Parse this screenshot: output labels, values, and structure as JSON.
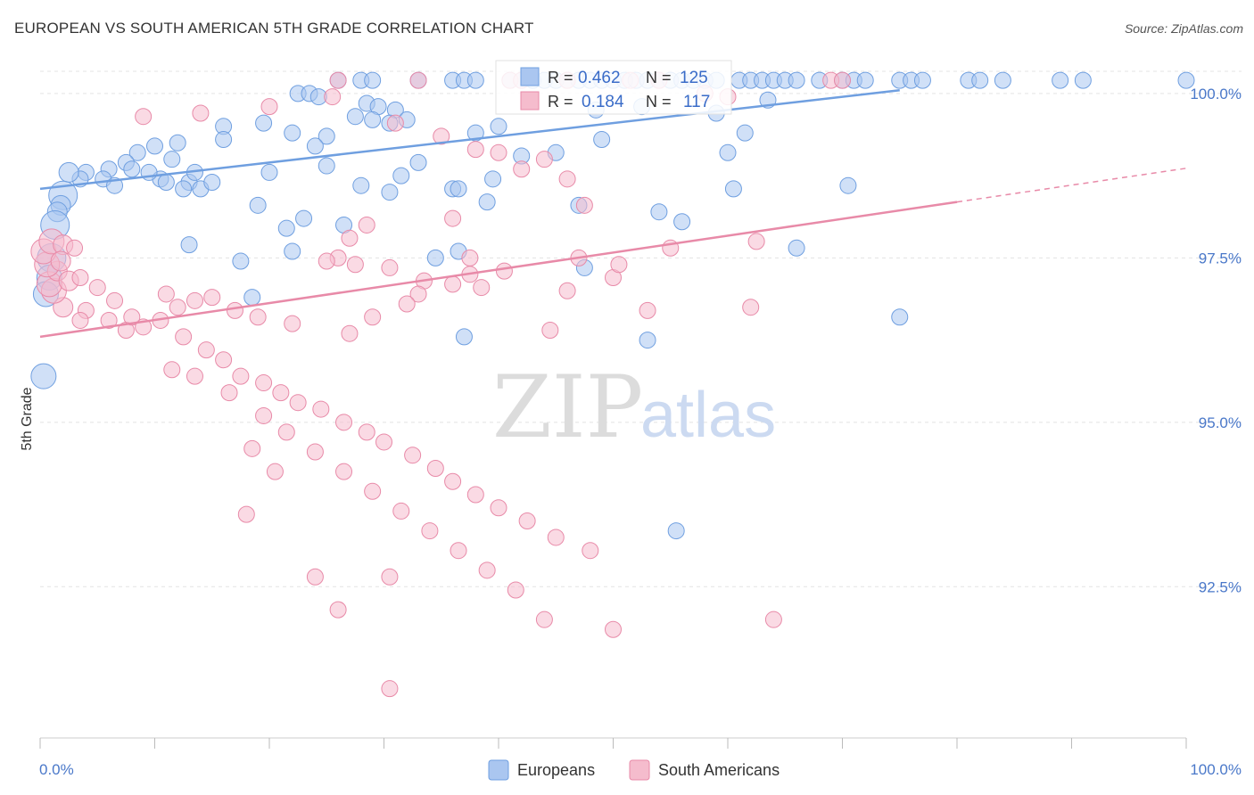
{
  "header": {
    "title": "EUROPEAN VS SOUTH AMERICAN 5TH GRADE CORRELATION CHART",
    "source": "Source: ZipAtlas.com"
  },
  "watermark": {
    "zip": "ZIP",
    "atlas": "atlas"
  },
  "chart_data": {
    "type": "scatter",
    "ylabel": "5th Grade",
    "xlim": [
      0,
      100
    ],
    "ylim": [
      90.2,
      100.5
    ],
    "x_tick_labels": {
      "left": "0.0%",
      "right": "100.0%"
    },
    "y_ticks": [
      {
        "value": 100.0,
        "label": "100.0%"
      },
      {
        "value": 97.5,
        "label": "97.5%"
      },
      {
        "value": 95.0,
        "label": "95.0%"
      },
      {
        "value": 92.5,
        "label": "92.5%"
      }
    ],
    "grid": true,
    "legend_stats": [
      {
        "r_label": "R =",
        "r_value": "0.462",
        "n_label": "N =",
        "n_value": "125"
      },
      {
        "r_label": "R =",
        "r_value": "0.184",
        "n_label": "N =",
        "n_value": "117"
      }
    ],
    "series": [
      {
        "name": "Europeans",
        "color": "#6f9fe0",
        "fill": "#aac6f0",
        "trend": {
          "x0": 0,
          "y0": 98.55,
          "x1": 75,
          "y1": 100.05,
          "dash_to": 75
        },
        "points": [
          [
            26,
            100.2
          ],
          [
            28,
            100.2
          ],
          [
            29,
            100.2
          ],
          [
            33,
            100.2
          ],
          [
            36,
            100.2
          ],
          [
            37,
            100.2
          ],
          [
            38,
            100.2
          ],
          [
            41,
            100.2
          ],
          [
            42,
            100.2
          ],
          [
            43,
            100.2
          ],
          [
            44,
            100.2
          ],
          [
            45,
            100.2
          ],
          [
            46,
            100.2
          ],
          [
            47,
            100.2
          ],
          [
            48,
            100.2
          ],
          [
            49,
            100.2
          ],
          [
            50,
            100.2
          ],
          [
            51,
            100.2
          ],
          [
            52,
            100.2
          ],
          [
            53,
            100.2
          ],
          [
            54,
            100.2
          ],
          [
            55,
            100.2
          ],
          [
            56,
            100.2
          ],
          [
            57,
            100.2
          ],
          [
            58,
            100.2
          ],
          [
            59,
            100.2
          ],
          [
            61,
            100.2
          ],
          [
            62,
            100.2
          ],
          [
            63,
            100.2
          ],
          [
            64,
            100.2
          ],
          [
            65,
            100.2
          ],
          [
            66,
            100.2
          ],
          [
            68,
            100.2
          ],
          [
            70,
            100.2
          ],
          [
            71,
            100.2
          ],
          [
            72,
            100.2
          ],
          [
            75,
            100.2
          ],
          [
            76,
            100.2
          ],
          [
            77,
            100.2
          ],
          [
            81,
            100.2
          ],
          [
            82,
            100.2
          ],
          [
            84,
            100.2
          ],
          [
            89,
            100.2
          ],
          [
            91,
            100.2
          ],
          [
            100,
            100.2
          ],
          [
            22.5,
            100.0
          ],
          [
            23.5,
            100.0
          ],
          [
            24.3,
            99.95
          ],
          [
            28.5,
            99.85
          ],
          [
            29.5,
            99.8
          ],
          [
            31,
            99.75
          ],
          [
            27.5,
            99.65
          ],
          [
            29,
            99.6
          ],
          [
            30.5,
            99.55
          ],
          [
            32,
            99.6
          ],
          [
            16,
            99.5
          ],
          [
            19.5,
            99.55
          ],
          [
            22,
            99.4
          ],
          [
            25,
            99.35
          ],
          [
            16,
            99.3
          ],
          [
            24,
            99.2
          ],
          [
            12,
            99.25
          ],
          [
            10,
            99.2
          ],
          [
            11.5,
            99.0
          ],
          [
            8.5,
            99.1
          ],
          [
            7.5,
            98.95
          ],
          [
            8,
            98.85
          ],
          [
            6,
            98.85
          ],
          [
            5.5,
            98.7
          ],
          [
            4,
            98.8
          ],
          [
            3.5,
            98.7
          ],
          [
            2.5,
            98.8
          ],
          [
            6.5,
            98.6
          ],
          [
            10.5,
            98.7
          ],
          [
            9.5,
            98.8
          ],
          [
            11,
            98.65
          ],
          [
            13,
            98.65
          ],
          [
            13.5,
            98.8
          ],
          [
            12.5,
            98.55
          ],
          [
            14,
            98.55
          ],
          [
            15,
            98.65
          ],
          [
            20,
            98.8
          ],
          [
            25,
            98.9
          ],
          [
            31.5,
            98.75
          ],
          [
            28,
            98.6
          ],
          [
            30.5,
            98.5
          ],
          [
            36,
            98.55
          ],
          [
            39,
            98.35
          ],
          [
            39.5,
            98.7
          ],
          [
            47,
            98.3
          ],
          [
            2,
            98.45
          ],
          [
            1.8,
            98.3
          ],
          [
            1.5,
            98.2
          ],
          [
            1.3,
            98.0
          ],
          [
            19,
            98.3
          ],
          [
            21.5,
            97.95
          ],
          [
            23,
            98.1
          ],
          [
            26.5,
            98.0
          ],
          [
            34.5,
            97.5
          ],
          [
            22,
            97.6
          ],
          [
            17.5,
            97.45
          ],
          [
            13,
            97.7
          ],
          [
            1,
            97.5
          ],
          [
            0.8,
            97.2
          ],
          [
            0.5,
            96.95
          ],
          [
            18.5,
            96.9
          ],
          [
            37,
            96.3
          ],
          [
            36.5,
            97.6
          ],
          [
            47.5,
            97.35
          ],
          [
            56,
            98.05
          ],
          [
            60.5,
            98.55
          ],
          [
            66,
            97.65
          ],
          [
            75,
            96.6
          ],
          [
            53,
            96.25
          ],
          [
            55.5,
            93.35
          ],
          [
            0.3,
            95.7
          ],
          [
            38,
            99.4
          ],
          [
            42,
            99.05
          ],
          [
            36.5,
            98.55
          ],
          [
            33,
            98.95
          ],
          [
            45,
            99.1
          ],
          [
            49,
            99.3
          ],
          [
            40,
            99.5
          ],
          [
            54,
            98.2
          ],
          [
            70.5,
            98.6
          ],
          [
            60,
            99.1
          ],
          [
            61.5,
            99.4
          ],
          [
            63.5,
            99.9
          ],
          [
            59,
            99.7
          ],
          [
            52.5,
            99.8
          ],
          [
            48.5,
            99.75
          ]
        ]
      },
      {
        "name": "South Americans",
        "color": "#e88aa8",
        "fill": "#f5bccd",
        "trend": {
          "x0": 0,
          "y0": 96.3,
          "x1": 80,
          "y1": 98.35,
          "dash_to": 100
        },
        "points": [
          [
            26,
            100.2
          ],
          [
            33,
            100.2
          ],
          [
            41,
            100.2
          ],
          [
            42,
            100.2
          ],
          [
            46,
            100.2
          ],
          [
            51.5,
            100.2
          ],
          [
            54,
            100.2
          ],
          [
            69,
            100.2
          ],
          [
            70,
            100.2
          ],
          [
            58,
            100.0
          ],
          [
            60,
            99.95
          ],
          [
            25.5,
            99.95
          ],
          [
            20,
            99.8
          ],
          [
            14,
            99.7
          ],
          [
            9,
            99.65
          ],
          [
            31,
            99.55
          ],
          [
            35,
            99.35
          ],
          [
            38,
            99.15
          ],
          [
            40,
            99.1
          ],
          [
            44,
            99.0
          ],
          [
            42,
            98.85
          ],
          [
            46,
            98.7
          ],
          [
            47.5,
            98.3
          ],
          [
            36,
            98.1
          ],
          [
            28.5,
            98.0
          ],
          [
            27,
            97.8
          ],
          [
            26,
            97.5
          ],
          [
            25,
            97.45
          ],
          [
            30.5,
            97.35
          ],
          [
            33.5,
            97.15
          ],
          [
            37.5,
            97.25
          ],
          [
            38.5,
            97.05
          ],
          [
            36,
            97.1
          ],
          [
            33,
            96.95
          ],
          [
            32,
            96.8
          ],
          [
            29,
            96.6
          ],
          [
            27,
            96.35
          ],
          [
            22,
            96.5
          ],
          [
            19,
            96.6
          ],
          [
            17,
            96.7
          ],
          [
            15,
            96.9
          ],
          [
            13.5,
            96.85
          ],
          [
            11,
            96.95
          ],
          [
            12,
            96.75
          ],
          [
            10.5,
            96.55
          ],
          [
            9,
            96.45
          ],
          [
            7.5,
            96.4
          ],
          [
            6,
            96.55
          ],
          [
            4,
            96.7
          ],
          [
            3.5,
            96.55
          ],
          [
            2,
            96.75
          ],
          [
            1.2,
            97.0
          ],
          [
            0.8,
            97.1
          ],
          [
            1.5,
            97.3
          ],
          [
            2.5,
            97.15
          ],
          [
            3.5,
            97.2
          ],
          [
            0.6,
            97.4
          ],
          [
            0.3,
            97.6
          ],
          [
            1,
            97.75
          ],
          [
            2,
            97.7
          ],
          [
            3,
            97.65
          ],
          [
            1.8,
            97.45
          ],
          [
            5,
            97.05
          ],
          [
            6.5,
            96.85
          ],
          [
            8,
            96.6
          ],
          [
            12.5,
            96.3
          ],
          [
            14.5,
            96.1
          ],
          [
            16,
            95.95
          ],
          [
            17.5,
            95.7
          ],
          [
            19.5,
            95.6
          ],
          [
            21,
            95.45
          ],
          [
            22.5,
            95.3
          ],
          [
            24.5,
            95.2
          ],
          [
            26.5,
            95.0
          ],
          [
            28.5,
            94.85
          ],
          [
            30,
            94.7
          ],
          [
            32.5,
            94.5
          ],
          [
            34.5,
            94.3
          ],
          [
            36,
            94.1
          ],
          [
            38,
            93.9
          ],
          [
            40,
            93.7
          ],
          [
            42.5,
            93.5
          ],
          [
            45,
            93.25
          ],
          [
            48,
            93.05
          ],
          [
            11.5,
            95.8
          ],
          [
            13.5,
            95.7
          ],
          [
            16.5,
            95.45
          ],
          [
            19.5,
            95.1
          ],
          [
            21.5,
            94.85
          ],
          [
            24,
            94.55
          ],
          [
            26.5,
            94.25
          ],
          [
            29,
            93.95
          ],
          [
            31.5,
            93.65
          ],
          [
            34,
            93.35
          ],
          [
            36.5,
            93.05
          ],
          [
            39,
            92.75
          ],
          [
            41.5,
            92.45
          ],
          [
            18,
            93.6
          ],
          [
            24,
            92.65
          ],
          [
            26,
            92.15
          ],
          [
            30.5,
            92.65
          ],
          [
            44,
            92.0
          ],
          [
            50,
            91.85
          ],
          [
            64,
            92.0
          ],
          [
            30.5,
            90.95
          ],
          [
            18.5,
            94.6
          ],
          [
            20.5,
            94.25
          ],
          [
            44.5,
            96.4
          ],
          [
            53,
            96.7
          ],
          [
            50,
            97.2
          ],
          [
            46,
            97.0
          ],
          [
            62,
            96.75
          ],
          [
            47,
            97.5
          ],
          [
            50.5,
            97.4
          ],
          [
            55,
            97.65
          ],
          [
            62.5,
            97.75
          ],
          [
            37.5,
            97.5
          ],
          [
            27.5,
            97.4
          ],
          [
            40.5,
            97.3
          ]
        ]
      }
    ]
  },
  "legend": {
    "items": [
      "Europeans",
      "South Americans"
    ]
  }
}
